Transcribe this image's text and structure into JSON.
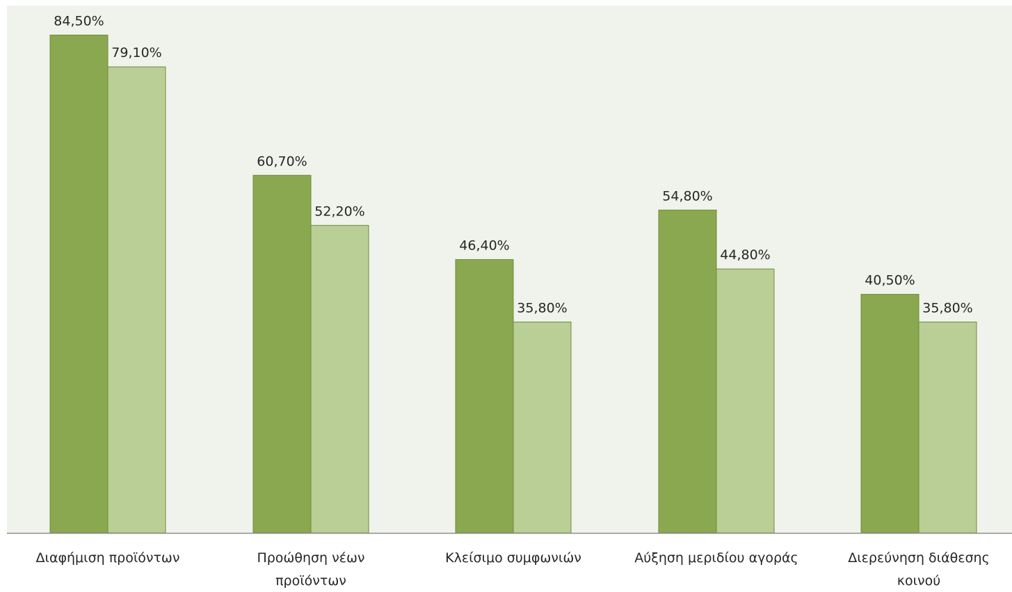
{
  "chart_data": {
    "type": "bar",
    "categories": [
      [
        "Διαφήμιση προϊόντων"
      ],
      [
        "Προώθηση νέων",
        "προϊόντων"
      ],
      [
        "Κλείσιμο συμφωνιών"
      ],
      [
        "Αύξηση μεριδίου αγοράς"
      ],
      [
        "Διερεύνηση διάθεσης",
        "κοινού"
      ]
    ],
    "series": [
      {
        "values": [
          84.5,
          60.7,
          46.4,
          54.8,
          40.5
        ],
        "labels": [
          "84,50%",
          "60,70%",
          "46,40%",
          "54,80%",
          "40,50%"
        ],
        "color": "#8aa84f"
      },
      {
        "values": [
          79.1,
          52.2,
          35.8,
          44.8,
          35.8
        ],
        "labels": [
          "79,10%",
          "52,20%",
          "35,80%",
          "44,80%",
          "35,80%"
        ],
        "color": "#bacf96"
      }
    ],
    "ylim": [
      0,
      100
    ],
    "grid": false,
    "legend": "none",
    "plot_background": "#f0f3eb",
    "bar_stroke": "#6f8a3c",
    "axis_color": "#8c8c8c",
    "text_color": "#262626"
  }
}
